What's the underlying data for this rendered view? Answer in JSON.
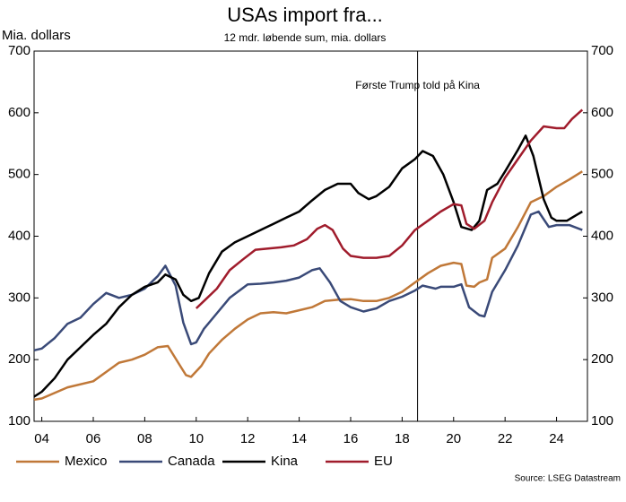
{
  "chart_data": {
    "type": "line",
    "title": "USAs import fra...",
    "subtitle": "12 mdr. løbende sum, mia. dollars",
    "y_label": "Mia. dollars",
    "annotation": "Første Trump told på Kina",
    "annotation_x": 18.6,
    "source": "Source: LSEG Datastream",
    "xlim": [
      3.7,
      25.2
    ],
    "xticks": [
      {
        "value": 4,
        "label": "04"
      },
      {
        "value": 6,
        "label": "06"
      },
      {
        "value": 8,
        "label": "08"
      },
      {
        "value": 10,
        "label": "10"
      },
      {
        "value": 12,
        "label": "12"
      },
      {
        "value": 14,
        "label": "14"
      },
      {
        "value": 16,
        "label": "16"
      },
      {
        "value": 18,
        "label": "18"
      },
      {
        "value": 20,
        "label": "20"
      },
      {
        "value": 22,
        "label": "22"
      },
      {
        "value": 24,
        "label": "24"
      }
    ],
    "ylim": [
      100,
      700
    ],
    "yticks": [
      100,
      200,
      300,
      400,
      500,
      600,
      700
    ],
    "y2lim": [
      100,
      700
    ],
    "y2ticks": [
      100,
      200,
      300,
      400,
      500,
      600,
      700
    ],
    "series": [
      {
        "name": "Mexico",
        "color": "#c07838",
        "x": [
          3.7,
          4,
          5,
          6,
          7,
          7.5,
          8,
          8.5,
          8.9,
          9.3,
          9.6,
          9.8,
          10.2,
          10.5,
          11,
          11.5,
          12,
          12.5,
          13,
          13.5,
          14,
          14.5,
          15,
          15.5,
          16,
          16.5,
          17,
          17.5,
          18,
          18.5,
          19,
          19.5,
          20,
          20.3,
          20.5,
          20.8,
          21,
          21.3,
          21.5,
          22,
          22.5,
          23,
          23.5,
          24,
          24.5,
          25
        ],
        "values": [
          135,
          137,
          155,
          165,
          195,
          200,
          208,
          220,
          222,
          195,
          175,
          172,
          190,
          210,
          232,
          250,
          265,
          275,
          277,
          275,
          280,
          285,
          295,
          297,
          298,
          295,
          295,
          300,
          310,
          325,
          340,
          352,
          357,
          355,
          320,
          318,
          325,
          330,
          365,
          380,
          415,
          455,
          465,
          480,
          492,
          505
        ]
      },
      {
        "name": "Canada",
        "color": "#3a4a78",
        "x": [
          3.7,
          4,
          4.5,
          5,
          5.5,
          6,
          6.5,
          7,
          7.5,
          8,
          8.5,
          8.8,
          9.2,
          9.5,
          9.8,
          10,
          10.3,
          10.8,
          11.3,
          12,
          12.5,
          13,
          13.5,
          14,
          14.5,
          14.8,
          15.2,
          15.6,
          16,
          16.5,
          17,
          17.5,
          18,
          18.5,
          18.8,
          19.3,
          19.5,
          20,
          20.3,
          20.6,
          21,
          21.2,
          21.5,
          22,
          22.5,
          23,
          23.3,
          23.7,
          24,
          24.5,
          25
        ],
        "values": [
          215,
          218,
          235,
          258,
          268,
          290,
          308,
          300,
          305,
          315,
          335,
          352,
          320,
          260,
          225,
          228,
          250,
          275,
          300,
          322,
          323,
          325,
          328,
          333,
          345,
          348,
          325,
          295,
          285,
          278,
          283,
          295,
          302,
          312,
          320,
          315,
          318,
          318,
          322,
          285,
          272,
          270,
          310,
          345,
          385,
          435,
          440,
          415,
          418,
          418,
          410
        ]
      },
      {
        "name": "Kina",
        "color": "#000000",
        "x": [
          3.7,
          4,
          4.5,
          5,
          5.5,
          6,
          6.5,
          7,
          7.5,
          8,
          8.5,
          8.8,
          9.2,
          9.5,
          9.8,
          10.1,
          10.5,
          11,
          11.5,
          12,
          12.5,
          13,
          13.5,
          14,
          14.5,
          15,
          15.5,
          16,
          16.3,
          16.7,
          17,
          17.5,
          18,
          18.5,
          18.8,
          19.2,
          19.6,
          20,
          20.3,
          20.7,
          21,
          21.3,
          21.7,
          22,
          22.5,
          22.8,
          23.1,
          23.5,
          23.8,
          24,
          24.4,
          24.8,
          25
        ],
        "values": [
          140,
          148,
          170,
          200,
          220,
          240,
          258,
          285,
          305,
          318,
          325,
          338,
          330,
          305,
          295,
          300,
          340,
          375,
          390,
          400,
          410,
          420,
          430,
          440,
          458,
          475,
          485,
          485,
          470,
          460,
          465,
          480,
          510,
          525,
          538,
          530,
          500,
          455,
          415,
          410,
          425,
          475,
          485,
          505,
          540,
          563,
          530,
          460,
          430,
          425,
          425,
          435,
          440
        ]
      },
      {
        "name": "EU",
        "color": "#a01c2c",
        "x": [
          10,
          10.3,
          10.8,
          11.3,
          11.8,
          12.3,
          12.8,
          13.3,
          13.8,
          14.3,
          14.7,
          15,
          15.3,
          15.7,
          16,
          16.5,
          17,
          17.5,
          18,
          18.5,
          19,
          19.5,
          20,
          20.3,
          20.5,
          20.8,
          21.2,
          21.5,
          22,
          22.5,
          23,
          23.5,
          24,
          24.3,
          24.6,
          25
        ],
        "values": [
          283,
          295,
          315,
          345,
          362,
          378,
          380,
          382,
          385,
          395,
          412,
          418,
          410,
          380,
          368,
          365,
          365,
          368,
          385,
          410,
          425,
          440,
          452,
          450,
          420,
          412,
          425,
          455,
          495,
          525,
          555,
          578,
          575,
          575,
          590,
          605
        ]
      }
    ]
  }
}
